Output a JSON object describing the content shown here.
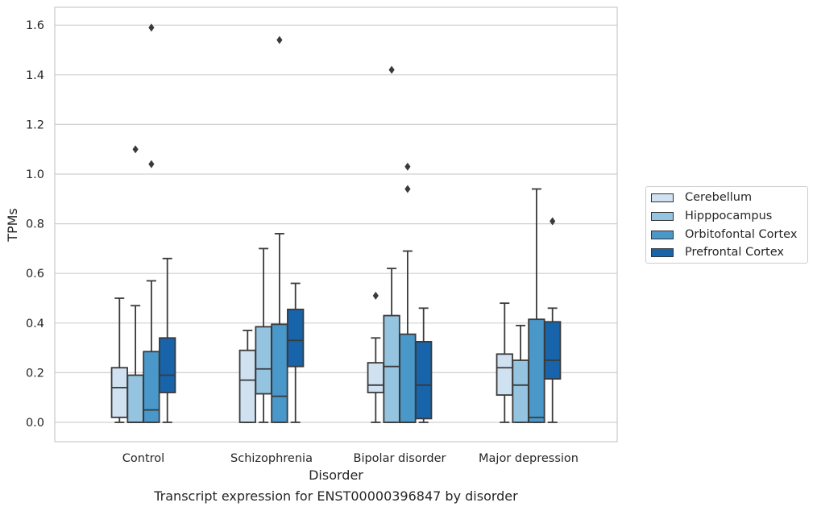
{
  "chart_data": {
    "type": "box",
    "xlabel": "Disorder",
    "ylabel": "TPMs",
    "caption": "Transcript expression for ENST00000396847 by disorder",
    "ylim": [
      -0.08,
      1.67
    ],
    "yticks": [
      0.0,
      0.2,
      0.4,
      0.6,
      0.8,
      1.0,
      1.2,
      1.4,
      1.6
    ],
    "ytick_labels": [
      "0.0",
      "0.2",
      "0.4",
      "0.6",
      "0.8",
      "1.0",
      "1.2",
      "1.4",
      "1.6"
    ],
    "grid": "horizontal",
    "legend_position": "right",
    "categories": [
      "Control",
      "Schizophrenia",
      "Bipolar disorder",
      "Major depression"
    ],
    "series": [
      {
        "name": "Cerebellum",
        "color": "#d0e1f2",
        "boxes": [
          {
            "whislo": 0.0,
            "q1": 0.02,
            "med": 0.14,
            "q3": 0.22,
            "whishi": 0.5,
            "fliers": []
          },
          {
            "whislo": 0.0,
            "q1": 0.0,
            "med": 0.17,
            "q3": 0.29,
            "whishi": 0.37,
            "fliers": []
          },
          {
            "whislo": 0.0,
            "q1": 0.12,
            "med": 0.15,
            "q3": 0.24,
            "whishi": 0.34,
            "fliers": [
              0.51
            ]
          },
          {
            "whislo": 0.0,
            "q1": 0.11,
            "med": 0.22,
            "q3": 0.275,
            "whishi": 0.48,
            "fliers": []
          }
        ]
      },
      {
        "name": "Hipppocampus",
        "color": "#94c4df",
        "boxes": [
          {
            "whislo": 0.0,
            "q1": 0.0,
            "med": 0.0,
            "q3": 0.19,
            "whishi": 0.47,
            "fliers": [
              1.1
            ]
          },
          {
            "whislo": 0.0,
            "q1": 0.115,
            "med": 0.215,
            "q3": 0.385,
            "whishi": 0.7,
            "fliers": []
          },
          {
            "whislo": 0.0,
            "q1": 0.0,
            "med": 0.225,
            "q3": 0.43,
            "whishi": 0.62,
            "fliers": [
              1.42
            ]
          },
          {
            "whislo": 0.0,
            "q1": 0.0,
            "med": 0.15,
            "q3": 0.25,
            "whishi": 0.39,
            "fliers": []
          }
        ]
      },
      {
        "name": "Orbitofontal Cortex",
        "color": "#4a98c9",
        "boxes": [
          {
            "whislo": 0.0,
            "q1": 0.0,
            "med": 0.05,
            "q3": 0.285,
            "whishi": 0.57,
            "fliers": [
              1.59,
              1.04
            ]
          },
          {
            "whislo": 0.0,
            "q1": 0.0,
            "med": 0.105,
            "q3": 0.395,
            "whishi": 0.76,
            "fliers": [
              1.54
            ]
          },
          {
            "whislo": 0.0,
            "q1": 0.0,
            "med": 0.0,
            "q3": 0.355,
            "whishi": 0.69,
            "fliers": [
              1.03,
              0.94
            ]
          },
          {
            "whislo": 0.0,
            "q1": 0.0,
            "med": 0.02,
            "q3": 0.415,
            "whishi": 0.94,
            "fliers": []
          }
        ]
      },
      {
        "name": "Prefrontal Cortex",
        "color": "#1764ab",
        "boxes": [
          {
            "whislo": 0.0,
            "q1": 0.12,
            "med": 0.19,
            "q3": 0.34,
            "whishi": 0.66,
            "fliers": []
          },
          {
            "whislo": 0.0,
            "q1": 0.225,
            "med": 0.33,
            "q3": 0.455,
            "whishi": 0.56,
            "fliers": []
          },
          {
            "whislo": 0.0,
            "q1": 0.015,
            "med": 0.15,
            "q3": 0.325,
            "whishi": 0.46,
            "fliers": []
          },
          {
            "whislo": 0.0,
            "q1": 0.175,
            "med": 0.25,
            "q3": 0.405,
            "whishi": 0.46,
            "fliers": [
              0.81
            ]
          }
        ]
      }
    ]
  }
}
